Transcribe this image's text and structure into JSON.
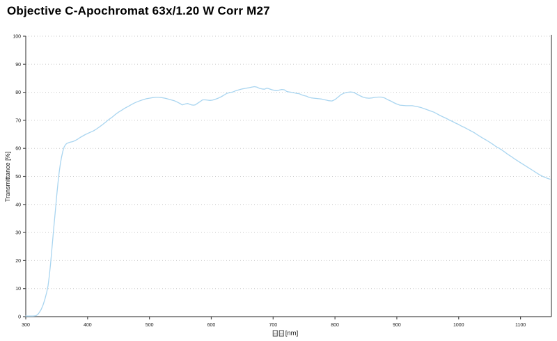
{
  "title": "Objective C-Apochromat 63x/1.20 W Corr M27",
  "colors": {
    "background": "#ffffff",
    "curve": "#a9d5f0",
    "axis": "#4d4d4d",
    "grid": "#c9c9c9",
    "text": "#1a1a1a"
  },
  "axes": {
    "x": {
      "ticks": [
        300,
        400,
        500,
        600,
        700,
        800,
        900,
        1000,
        1100
      ],
      "range": [
        300,
        1150
      ],
      "unit_label": "[nm]",
      "missing_glyph_boxes": 2,
      "tofu_fill": "88"
    },
    "y": {
      "label": "Transmittance [%]",
      "ticks": [
        0,
        10,
        20,
        30,
        40,
        50,
        60,
        70,
        80,
        90,
        100
      ],
      "range": [
        0,
        100
      ]
    }
  },
  "chart_data": {
    "type": "line",
    "title": "Objective C-Apochromat 63x/1.20 W Corr M27",
    "xlabel": "□□ [nm]",
    "ylabel": "Transmittance [%]",
    "xlim": [
      300,
      1150
    ],
    "ylim": [
      0,
      100
    ],
    "grid": "dotted horizontal gridlines every 10%",
    "legend": "none",
    "series": [
      {
        "name": "Transmittance",
        "color": "#a9d5f0",
        "points": [
          [
            300,
            0.2
          ],
          [
            306,
            0.2
          ],
          [
            312,
            0.2
          ],
          [
            316,
            0.3
          ],
          [
            319,
            0.7
          ],
          [
            322,
            1.5
          ],
          [
            325,
            2.6
          ],
          [
            328,
            4.2
          ],
          [
            331,
            6.2
          ],
          [
            334,
            8.8
          ],
          [
            336,
            11
          ],
          [
            338,
            14.5
          ],
          [
            340,
            18.5
          ],
          [
            342,
            23.5
          ],
          [
            344,
            28.5
          ],
          [
            346,
            33.5
          ],
          [
            348,
            38
          ],
          [
            350,
            43
          ],
          [
            352,
            47.5
          ],
          [
            354,
            51.5
          ],
          [
            356,
            54.5
          ],
          [
            358,
            57
          ],
          [
            360,
            59
          ],
          [
            362,
            60.5
          ],
          [
            364,
            61.2
          ],
          [
            366,
            61.7
          ],
          [
            369,
            62.0
          ],
          [
            372,
            62.2
          ],
          [
            376,
            62.4
          ],
          [
            380,
            62.8
          ],
          [
            384,
            63.3
          ],
          [
            388,
            63.9
          ],
          [
            392,
            64.4
          ],
          [
            396,
            64.9
          ],
          [
            400,
            65.3
          ],
          [
            405,
            65.8
          ],
          [
            410,
            66.3
          ],
          [
            415,
            67.0
          ],
          [
            420,
            67.8
          ],
          [
            425,
            68.6
          ],
          [
            430,
            69.5
          ],
          [
            435,
            70.4
          ],
          [
            440,
            71.2
          ],
          [
            445,
            72.1
          ],
          [
            450,
            72.9
          ],
          [
            455,
            73.6
          ],
          [
            460,
            74.3
          ],
          [
            465,
            74.9
          ],
          [
            470,
            75.5
          ],
          [
            475,
            76.1
          ],
          [
            480,
            76.6
          ],
          [
            485,
            77.0
          ],
          [
            490,
            77.4
          ],
          [
            495,
            77.7
          ],
          [
            500,
            77.9
          ],
          [
            505,
            78.1
          ],
          [
            510,
            78.2
          ],
          [
            515,
            78.2
          ],
          [
            520,
            78.1
          ],
          [
            525,
            77.9
          ],
          [
            530,
            77.6
          ],
          [
            535,
            77.3
          ],
          [
            540,
            77.0
          ],
          [
            545,
            76.5
          ],
          [
            550,
            75.9
          ],
          [
            553,
            75.5
          ],
          [
            556,
            75.7
          ],
          [
            559,
            75.9
          ],
          [
            562,
            76.0
          ],
          [
            565,
            75.7
          ],
          [
            568,
            75.5
          ],
          [
            571,
            75.4
          ],
          [
            574,
            75.5
          ],
          [
            578,
            76.1
          ],
          [
            582,
            76.7
          ],
          [
            586,
            77.3
          ],
          [
            590,
            77.3
          ],
          [
            594,
            77.2
          ],
          [
            598,
            77.1
          ],
          [
            602,
            77.2
          ],
          [
            606,
            77.5
          ],
          [
            610,
            77.8
          ],
          [
            615,
            78.3
          ],
          [
            620,
            78.9
          ],
          [
            625,
            79.6
          ],
          [
            630,
            79.9
          ],
          [
            635,
            80.1
          ],
          [
            640,
            80.6
          ],
          [
            645,
            80.9
          ],
          [
            650,
            81.2
          ],
          [
            655,
            81.4
          ],
          [
            660,
            81.6
          ],
          [
            665,
            81.8
          ],
          [
            670,
            82.0
          ],
          [
            674,
            81.8
          ],
          [
            678,
            81.4
          ],
          [
            682,
            81.2
          ],
          [
            686,
            81.1
          ],
          [
            690,
            81.5
          ],
          [
            694,
            81.2
          ],
          [
            698,
            80.9
          ],
          [
            702,
            80.7
          ],
          [
            706,
            80.6
          ],
          [
            710,
            80.8
          ],
          [
            714,
            81.0
          ],
          [
            718,
            80.9
          ],
          [
            722,
            80.3
          ],
          [
            726,
            80.1
          ],
          [
            730,
            80.0
          ],
          [
            734,
            79.8
          ],
          [
            738,
            79.6
          ],
          [
            742,
            79.5
          ],
          [
            746,
            79.1
          ],
          [
            750,
            78.8
          ],
          [
            754,
            78.6
          ],
          [
            758,
            78.2
          ],
          [
            762,
            78.0
          ],
          [
            766,
            77.9
          ],
          [
            770,
            77.8
          ],
          [
            774,
            77.7
          ],
          [
            778,
            77.6
          ],
          [
            782,
            77.4
          ],
          [
            786,
            77.2
          ],
          [
            790,
            77.0
          ],
          [
            795,
            76.9
          ],
          [
            800,
            77.4
          ],
          [
            805,
            78.3
          ],
          [
            810,
            79.2
          ],
          [
            815,
            79.7
          ],
          [
            820,
            80.0
          ],
          [
            825,
            80.1
          ],
          [
            830,
            80.0
          ],
          [
            835,
            79.4
          ],
          [
            840,
            78.8
          ],
          [
            845,
            78.3
          ],
          [
            850,
            78.0
          ],
          [
            855,
            77.9
          ],
          [
            860,
            78.0
          ],
          [
            865,
            78.2
          ],
          [
            870,
            78.3
          ],
          [
            875,
            78.3
          ],
          [
            880,
            78.0
          ],
          [
            885,
            77.4
          ],
          [
            890,
            76.9
          ],
          [
            895,
            76.3
          ],
          [
            900,
            75.8
          ],
          [
            905,
            75.4
          ],
          [
            910,
            75.3
          ],
          [
            915,
            75.2
          ],
          [
            920,
            75.2
          ],
          [
            925,
            75.2
          ],
          [
            930,
            75.0
          ],
          [
            935,
            74.8
          ],
          [
            940,
            74.5
          ],
          [
            945,
            74.1
          ],
          [
            950,
            73.7
          ],
          [
            955,
            73.3
          ],
          [
            960,
            72.9
          ],
          [
            965,
            72.3
          ],
          [
            970,
            71.7
          ],
          [
            975,
            71.2
          ],
          [
            980,
            70.7
          ],
          [
            985,
            70.1
          ],
          [
            990,
            69.6
          ],
          [
            995,
            69.0
          ],
          [
            1000,
            68.5
          ],
          [
            1005,
            67.9
          ],
          [
            1010,
            67.4
          ],
          [
            1015,
            66.8
          ],
          [
            1020,
            66.2
          ],
          [
            1025,
            65.6
          ],
          [
            1030,
            64.9
          ],
          [
            1035,
            64.2
          ],
          [
            1040,
            63.5
          ],
          [
            1045,
            62.9
          ],
          [
            1050,
            62.2
          ],
          [
            1055,
            61.5
          ],
          [
            1060,
            60.7
          ],
          [
            1065,
            60.1
          ],
          [
            1070,
            59.4
          ],
          [
            1075,
            58.6
          ],
          [
            1080,
            57.8
          ],
          [
            1085,
            57.1
          ],
          [
            1090,
            56.3
          ],
          [
            1095,
            55.6
          ],
          [
            1100,
            54.9
          ],
          [
            1105,
            54.2
          ],
          [
            1110,
            53.5
          ],
          [
            1115,
            52.8
          ],
          [
            1120,
            52.1
          ],
          [
            1125,
            51.4
          ],
          [
            1130,
            50.7
          ],
          [
            1135,
            50.1
          ],
          [
            1140,
            49.6
          ],
          [
            1145,
            49.2
          ],
          [
            1148,
            49.0
          ]
        ]
      }
    ]
  }
}
